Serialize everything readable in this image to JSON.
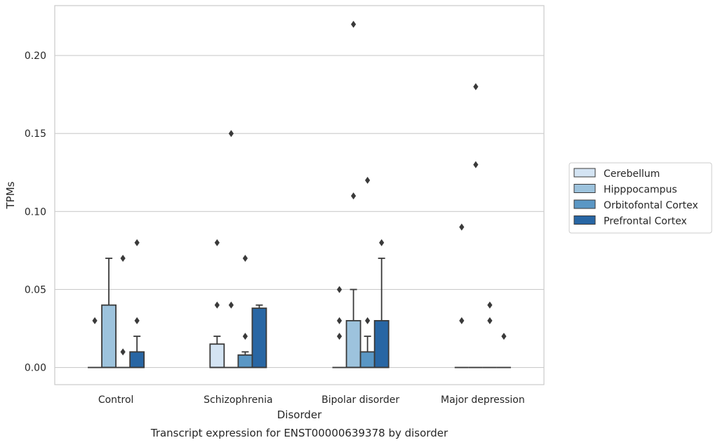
{
  "chart_data": {
    "type": "box",
    "caption": "Transcript expression for ENST00000639378 by disorder",
    "xlabel": "Disorder",
    "ylabel": "TPMs",
    "ylim": [
      -0.011,
      0.232
    ],
    "yticks": [
      0.0,
      0.05,
      0.1,
      0.15,
      0.2
    ],
    "ytick_labels": [
      "0.00",
      "0.05",
      "0.10",
      "0.15",
      "0.20"
    ],
    "grid": "horizontal",
    "legend_position": "right",
    "categories": [
      "Control",
      "Schizophrenia",
      "Bipolar disorder",
      "Major depression"
    ],
    "series": [
      {
        "name": "Cerebellum",
        "color": "#d4e4f3",
        "boxes": [
          {
            "q1": 0.0,
            "q3": 0.0,
            "median": 0.0,
            "whisker_low": 0.0,
            "whisker_high": 0.0,
            "outliers": [
              0.03
            ]
          },
          {
            "q1": 0.0,
            "q3": 0.015,
            "median": 0.0,
            "whisker_low": 0.0,
            "whisker_high": 0.02,
            "outliers": [
              0.04,
              0.08
            ]
          },
          {
            "q1": 0.0,
            "q3": 0.0,
            "median": 0.0,
            "whisker_low": 0.0,
            "whisker_high": 0.0,
            "outliers": [
              0.02,
              0.03,
              0.05
            ]
          },
          {
            "q1": 0.0,
            "q3": 0.0,
            "median": 0.0,
            "whisker_low": 0.0,
            "whisker_high": 0.0,
            "outliers": [
              0.03,
              0.09
            ]
          }
        ]
      },
      {
        "name": "Hipppocampus",
        "color": "#9dc3dd",
        "boxes": [
          {
            "q1": 0.0,
            "q3": 0.04,
            "median": 0.0,
            "whisker_low": 0.0,
            "whisker_high": 0.07,
            "outliers": []
          },
          {
            "q1": 0.0,
            "q3": 0.0,
            "median": 0.0,
            "whisker_low": 0.0,
            "whisker_high": 0.0,
            "outliers": [
              0.04,
              0.15
            ]
          },
          {
            "q1": 0.0,
            "q3": 0.03,
            "median": 0.0,
            "whisker_low": 0.0,
            "whisker_high": 0.05,
            "outliers": [
              0.11,
              0.22
            ]
          },
          {
            "q1": 0.0,
            "q3": 0.0,
            "median": 0.0,
            "whisker_low": 0.0,
            "whisker_high": 0.0,
            "outliers": [
              0.13,
              0.18
            ]
          }
        ]
      },
      {
        "name": "Orbitofontal Cortex",
        "color": "#5a97c5",
        "boxes": [
          {
            "q1": 0.0,
            "q3": 0.0,
            "median": 0.0,
            "whisker_low": 0.0,
            "whisker_high": 0.0,
            "outliers": [
              0.01,
              0.07
            ]
          },
          {
            "q1": 0.0,
            "q3": 0.008,
            "median": 0.0,
            "whisker_low": 0.0,
            "whisker_high": 0.01,
            "outliers": [
              0.02,
              0.07
            ]
          },
          {
            "q1": 0.0,
            "q3": 0.01,
            "median": 0.0,
            "whisker_low": 0.0,
            "whisker_high": 0.02,
            "outliers": [
              0.03,
              0.12
            ]
          },
          {
            "q1": 0.0,
            "q3": 0.0,
            "median": 0.0,
            "whisker_low": 0.0,
            "whisker_high": 0.0,
            "outliers": [
              0.03,
              0.04
            ]
          }
        ]
      },
      {
        "name": "Prefrontal Cortex",
        "color": "#2866a4",
        "boxes": [
          {
            "q1": 0.0,
            "q3": 0.01,
            "median": 0.0,
            "whisker_low": 0.0,
            "whisker_high": 0.02,
            "outliers": [
              0.03,
              0.08
            ]
          },
          {
            "q1": 0.0,
            "q3": 0.038,
            "median": 0.0,
            "whisker_low": 0.0,
            "whisker_high": 0.04,
            "outliers": []
          },
          {
            "q1": 0.0,
            "q3": 0.03,
            "median": 0.0,
            "whisker_low": 0.0,
            "whisker_high": 0.07,
            "outliers": [
              0.08
            ]
          },
          {
            "q1": 0.0,
            "q3": 0.0,
            "median": 0.0,
            "whisker_low": 0.0,
            "whisker_high": 0.0,
            "outliers": [
              0.02
            ]
          }
        ]
      }
    ]
  }
}
